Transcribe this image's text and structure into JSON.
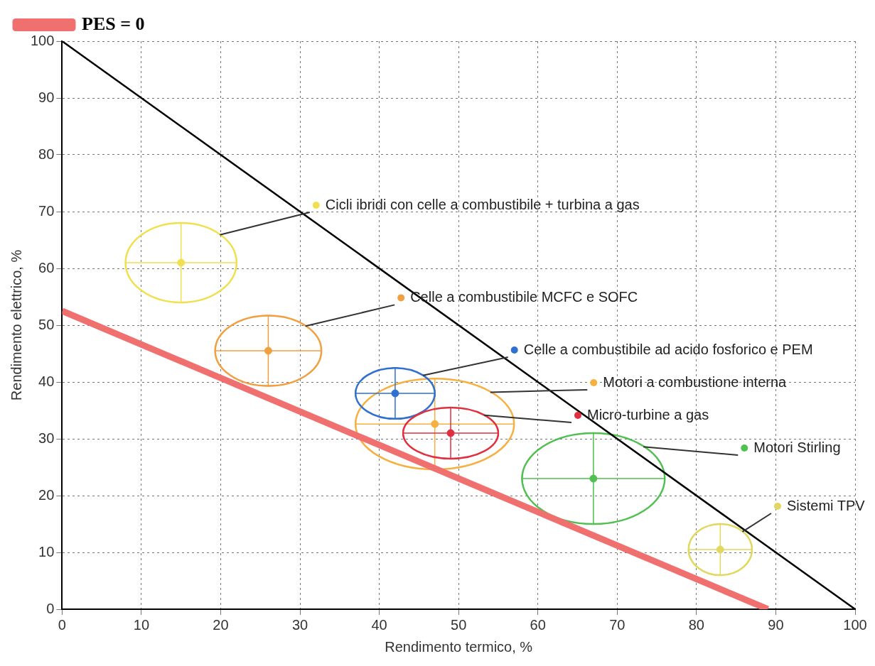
{
  "chart_data": {
    "type": "scatter",
    "xlabel": "Rendimento termico, %",
    "ylabel": "Rendimento elettrico, %",
    "xlim": [
      0,
      100
    ],
    "ylim": [
      0,
      100
    ],
    "xticks": [
      0,
      10,
      20,
      30,
      40,
      50,
      60,
      70,
      80,
      90,
      100
    ],
    "yticks": [
      0,
      10,
      20,
      30,
      40,
      50,
      60,
      70,
      80,
      90,
      100
    ],
    "grid": true,
    "legend": "top",
    "series": [
      {
        "type": "line",
        "color": "#000000",
        "x": [
          0,
          100
        ],
        "values": [
          100,
          0
        ]
      },
      {
        "type": "line",
        "name": "PES = 0",
        "color": "#f07070",
        "x": [
          0,
          89
        ],
        "values": [
          52.5,
          0
        ]
      },
      {
        "type": "scatter",
        "name": "Cicli ibridi con celle a combustibile + turbina a gas",
        "color": "#f0e050",
        "x": [
          15
        ],
        "values": [
          61
        ],
        "xerrors": [
          7
        ],
        "errors": [
          7
        ]
      },
      {
        "type": "scatter",
        "name": "Celle a combustibile MCFC e SOFC",
        "color": "#f0a040",
        "x": [
          26
        ],
        "values": [
          45.5
        ],
        "xerrors": [
          6.7
        ],
        "errors": [
          6.2
        ]
      },
      {
        "type": "scatter",
        "name": "Motori a combustione interna",
        "color": "#f5b040",
        "x": [
          47
        ],
        "values": [
          32.6
        ],
        "xerrors": [
          10
        ],
        "errors": [
          8
        ]
      },
      {
        "type": "scatter",
        "name": "Celle a combustibile ad acido fosforico e PEM",
        "color": "#3070d0",
        "x": [
          42
        ],
        "values": [
          38
        ],
        "xerrors": [
          5
        ],
        "errors": [
          4.5
        ]
      },
      {
        "type": "scatter",
        "name": "Micro-turbine a gas",
        "color": "#e03040",
        "x": [
          49
        ],
        "values": [
          31
        ],
        "xerrors": [
          6
        ],
        "errors": [
          4.5
        ]
      },
      {
        "type": "scatter",
        "name": "Motori Stirling",
        "color": "#50c050",
        "x": [
          67
        ],
        "values": [
          23
        ],
        "xerrors": [
          9
        ],
        "errors": [
          8
        ]
      },
      {
        "type": "scatter",
        "name": "Sistemi TPV",
        "color": "#e0d860",
        "x": [
          83
        ],
        "values": [
          10.5
        ],
        "xerrors": [
          4
        ],
        "errors": [
          4.5
        ]
      }
    ]
  }
}
